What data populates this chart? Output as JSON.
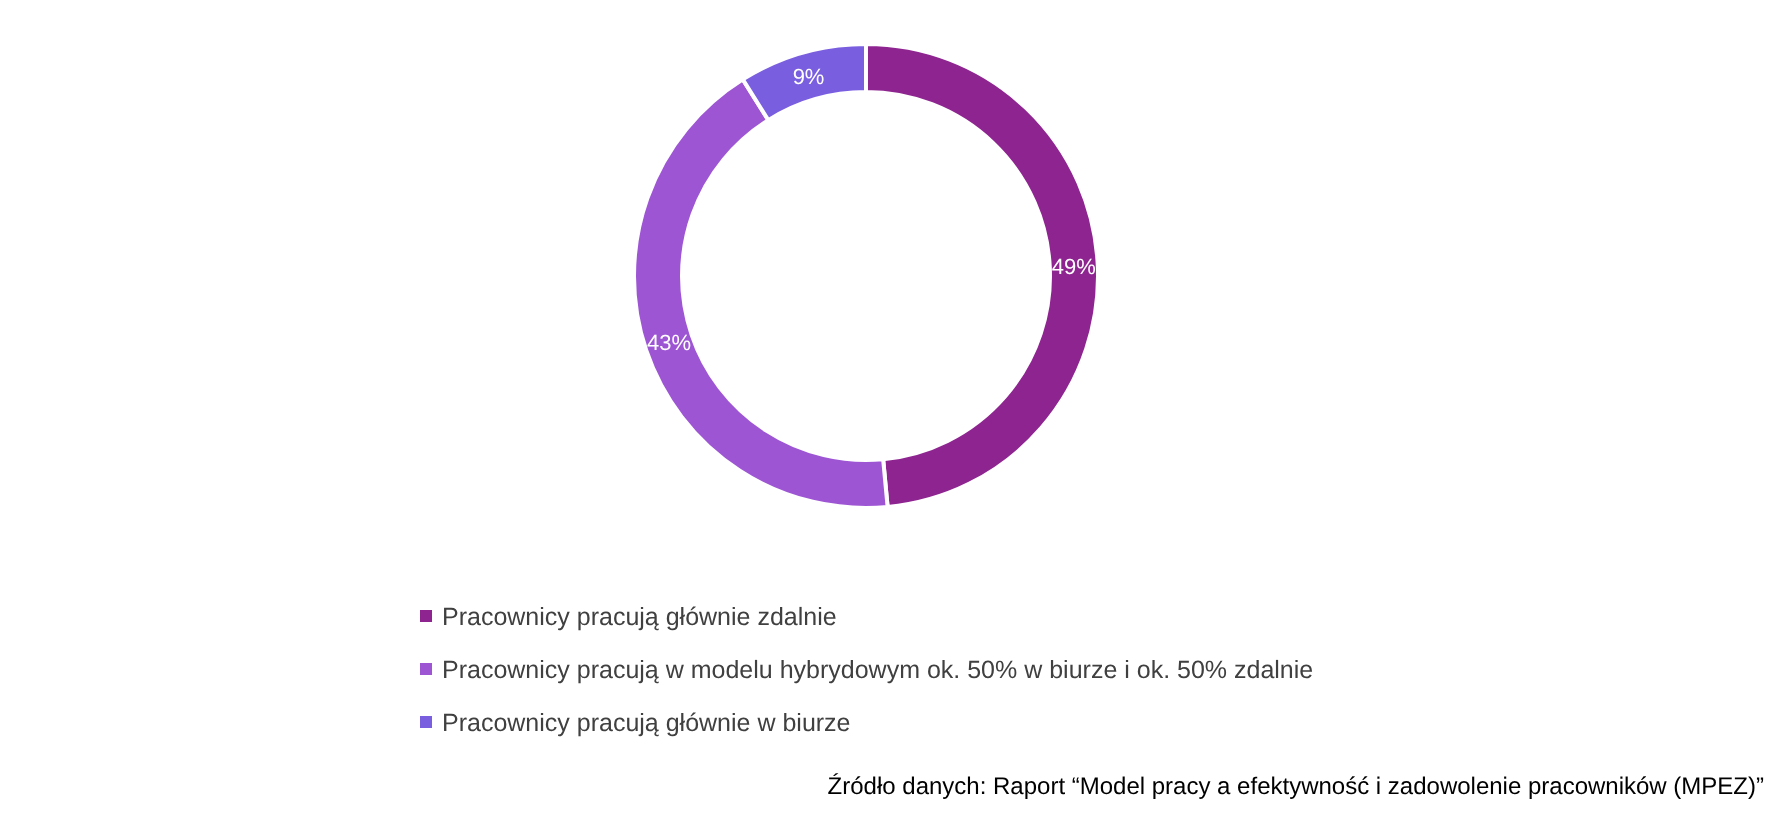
{
  "chart_data": {
    "type": "donut",
    "categories": [
      "Pracownicy pracują głównie zdalnie",
      "Pracownicy pracują w modelu hybrydowym ok. 50% w biurze i ok. 50% zdalnie",
      "Pracownicy pracują głównie w biurze"
    ],
    "values": [
      49,
      43,
      9
    ],
    "value_labels": [
      "49%",
      "43%",
      "9%"
    ],
    "colors": [
      "#8e2490",
      "#9d55d4",
      "#7a5ee0"
    ],
    "legend": "bottom",
    "annotations": [
      "Źródło danych: Raport “Model pracy a efektywność i zadowolenie pracowników (MPEZ)”"
    ]
  }
}
